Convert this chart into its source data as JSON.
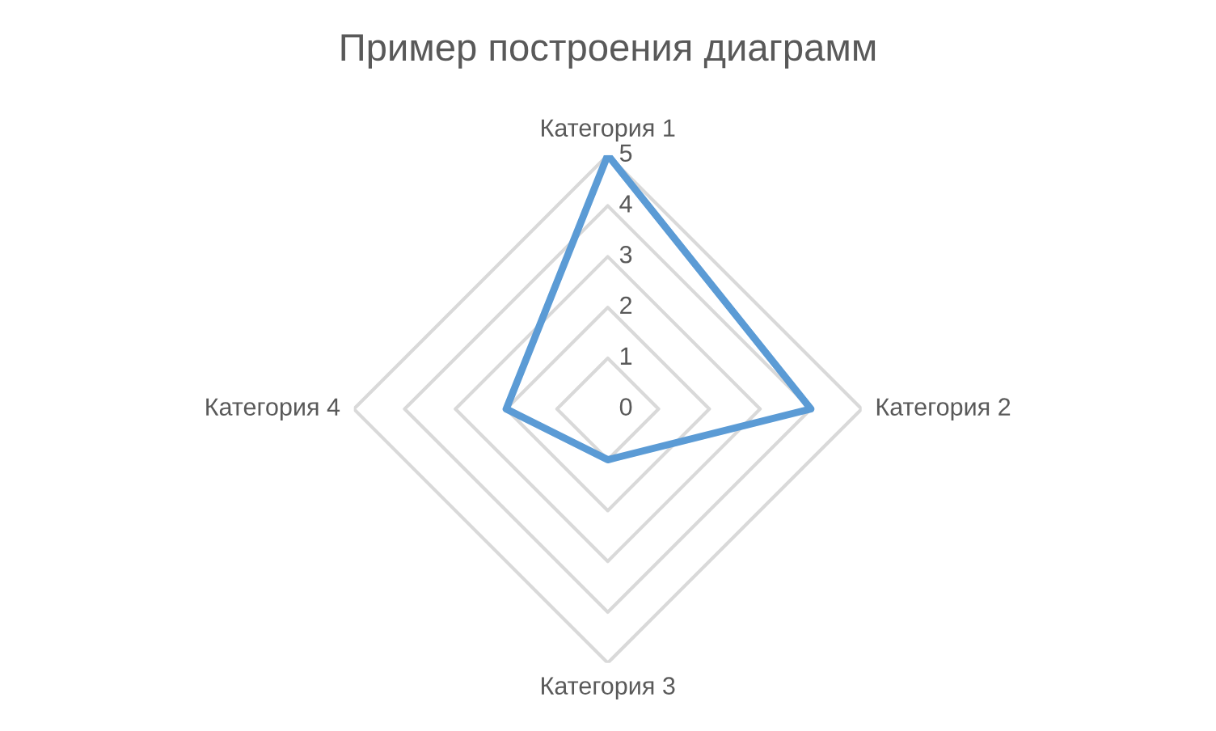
{
  "chart_data": {
    "type": "radar",
    "title": "Пример построения диаграмм",
    "categories": [
      "Категория 1",
      "Категория 2",
      "Категория 3",
      "Категория 4"
    ],
    "series": [
      {
        "color": "#5b9bd5",
        "values": [
          5,
          4,
          1,
          2
        ]
      }
    ],
    "ylim": [
      0,
      5
    ],
    "yticks": [
      0,
      1,
      2,
      3,
      4,
      5
    ],
    "grid": true
  }
}
